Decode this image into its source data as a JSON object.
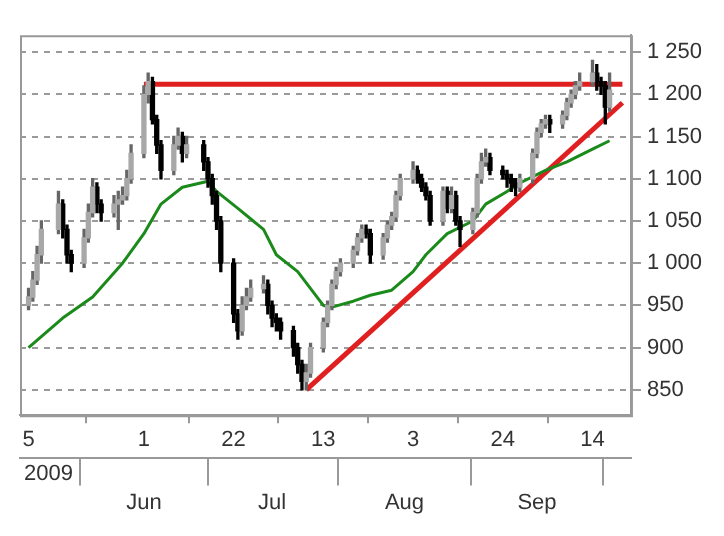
{
  "chart_data": {
    "type": "candlestick",
    "x": [
      "2009-05-05",
      "2009-05-06",
      "2009-05-07",
      "2009-05-08",
      "2009-05-12",
      "2009-05-13",
      "2009-05-14",
      "2009-05-15",
      "2009-05-18",
      "2009-05-19",
      "2009-05-20",
      "2009-05-21",
      "2009-05-22",
      "2009-05-25",
      "2009-05-26",
      "2009-05-27",
      "2009-05-28",
      "2009-05-29",
      "2009-06-01",
      "2009-06-02",
      "2009-06-03",
      "2009-06-04",
      "2009-06-05",
      "2009-06-08",
      "2009-06-09",
      "2009-06-10",
      "2009-06-11",
      "2009-06-15",
      "2009-06-16",
      "2009-06-17",
      "2009-06-18",
      "2009-06-19",
      "2009-06-22",
      "2009-06-23",
      "2009-06-24",
      "2009-06-25",
      "2009-06-26",
      "2009-06-29",
      "2009-06-30",
      "2009-07-01",
      "2009-07-02",
      "2009-07-03",
      "2009-07-06",
      "2009-07-07",
      "2009-07-08",
      "2009-07-09",
      "2009-07-10",
      "2009-07-13",
      "2009-07-14",
      "2009-07-15",
      "2009-07-16",
      "2009-07-17",
      "2009-07-20",
      "2009-07-21",
      "2009-07-22",
      "2009-07-23",
      "2009-07-24",
      "2009-07-27",
      "2009-07-28",
      "2009-07-29",
      "2009-07-30",
      "2009-07-31",
      "2009-08-03",
      "2009-08-04",
      "2009-08-05",
      "2009-08-06",
      "2009-08-07",
      "2009-08-10",
      "2009-08-11",
      "2009-08-12",
      "2009-08-13",
      "2009-08-14",
      "2009-08-17",
      "2009-08-18",
      "2009-08-19",
      "2009-08-20",
      "2009-08-21",
      "2009-08-24",
      "2009-08-25",
      "2009-08-26",
      "2009-08-27",
      "2009-08-28",
      "2009-08-31",
      "2009-09-01",
      "2009-09-02",
      "2009-09-03",
      "2009-09-04",
      "2009-09-07",
      "2009-09-08",
      "2009-09-09",
      "2009-09-10",
      "2009-09-11",
      "2009-09-14",
      "2009-09-15",
      "2009-09-16",
      "2009-09-17",
      "2009-09-18"
    ],
    "ohlc": [
      [
        950,
        970,
        945,
        960
      ],
      [
        960,
        990,
        955,
        980
      ],
      [
        980,
        1020,
        975,
        1010
      ],
      [
        1010,
        1050,
        1000,
        1040
      ],
      [
        1040,
        1085,
        1035,
        1070
      ],
      [
        1070,
        1075,
        1030,
        1040
      ],
      [
        1040,
        1045,
        1000,
        1010
      ],
      [
        1010,
        1015,
        990,
        1000
      ],
      [
        1000,
        1040,
        995,
        1030
      ],
      [
        1030,
        1070,
        1025,
        1060
      ],
      [
        1060,
        1100,
        1055,
        1090
      ],
      [
        1090,
        1095,
        1060,
        1070
      ],
      [
        1070,
        1075,
        1050,
        1060
      ],
      [
        1060,
        1080,
        1055,
        1070
      ],
      [
        1070,
        1085,
        1040,
        1075
      ],
      [
        1075,
        1090,
        1070,
        1080
      ],
      [
        1080,
        1110,
        1075,
        1100
      ],
      [
        1100,
        1140,
        1095,
        1130
      ],
      [
        1130,
        1210,
        1125,
        1200
      ],
      [
        1200,
        1225,
        1190,
        1215
      ],
      [
        1215,
        1220,
        1165,
        1170
      ],
      [
        1170,
        1175,
        1130,
        1140
      ],
      [
        1140,
        1145,
        1100,
        1110
      ],
      [
        1110,
        1150,
        1105,
        1140
      ],
      [
        1140,
        1160,
        1135,
        1150
      ],
      [
        1150,
        1155,
        1120,
        1130
      ],
      [
        1130,
        1150,
        1125,
        1140
      ],
      [
        1140,
        1145,
        1110,
        1120
      ],
      [
        1120,
        1125,
        1090,
        1100
      ],
      [
        1100,
        1105,
        1070,
        1080
      ],
      [
        1080,
        1085,
        1040,
        1050
      ],
      [
        1050,
        1055,
        990,
        1000
      ],
      [
        1000,
        1005,
        930,
        940
      ],
      [
        940,
        945,
        910,
        920
      ],
      [
        920,
        960,
        915,
        950
      ],
      [
        950,
        970,
        945,
        960
      ],
      [
        960,
        980,
        955,
        970
      ],
      [
        970,
        985,
        965,
        975
      ],
      [
        975,
        980,
        940,
        950
      ],
      [
        950,
        955,
        925,
        935
      ],
      [
        935,
        940,
        920,
        930
      ],
      [
        930,
        935,
        910,
        920
      ],
      [
        920,
        925,
        890,
        900
      ],
      [
        900,
        905,
        870,
        880
      ],
      [
        880,
        885,
        850,
        860
      ],
      [
        860,
        880,
        850,
        870
      ],
      [
        870,
        905,
        865,
        900
      ],
      [
        900,
        935,
        895,
        930
      ],
      [
        930,
        955,
        925,
        950
      ],
      [
        950,
        980,
        945,
        975
      ],
      [
        975,
        995,
        970,
        990
      ],
      [
        990,
        1005,
        985,
        1000
      ],
      [
        1000,
        1020,
        995,
        1015
      ],
      [
        1015,
        1035,
        1010,
        1030
      ],
      [
        1030,
        1045,
        1025,
        1040
      ],
      [
        1040,
        1045,
        1030,
        1035
      ],
      [
        1035,
        1040,
        1000,
        1010
      ],
      [
        1010,
        1035,
        1005,
        1030
      ],
      [
        1030,
        1050,
        1025,
        1045
      ],
      [
        1045,
        1060,
        1040,
        1055
      ],
      [
        1055,
        1085,
        1050,
        1080
      ],
      [
        1080,
        1105,
        1075,
        1100
      ],
      [
        1100,
        1120,
        1095,
        1110
      ],
      [
        1110,
        1115,
        1095,
        1100
      ],
      [
        1100,
        1105,
        1085,
        1090
      ],
      [
        1090,
        1095,
        1075,
        1080
      ],
      [
        1080,
        1085,
        1045,
        1050
      ],
      [
        1050,
        1090,
        1045,
        1085
      ],
      [
        1085,
        1090,
        1060,
        1065
      ],
      [
        1065,
        1090,
        1060,
        1080
      ],
      [
        1080,
        1085,
        1045,
        1050
      ],
      [
        1050,
        1055,
        1020,
        1040
      ],
      [
        1040,
        1065,
        1035,
        1060
      ],
      [
        1060,
        1105,
        1055,
        1100
      ],
      [
        1100,
        1130,
        1095,
        1120
      ],
      [
        1120,
        1135,
        1115,
        1125
      ],
      [
        1125,
        1130,
        1105,
        1110
      ],
      [
        1110,
        1115,
        1100,
        1105
      ],
      [
        1105,
        1110,
        1090,
        1100
      ],
      [
        1100,
        1105,
        1085,
        1095
      ],
      [
        1095,
        1100,
        1080,
        1090
      ],
      [
        1090,
        1105,
        1085,
        1100
      ],
      [
        1100,
        1135,
        1095,
        1130
      ],
      [
        1130,
        1160,
        1125,
        1155
      ],
      [
        1155,
        1170,
        1150,
        1165
      ],
      [
        1165,
        1175,
        1160,
        1170
      ],
      [
        1170,
        1175,
        1155,
        1165
      ],
      [
        1165,
        1180,
        1160,
        1175
      ],
      [
        1175,
        1195,
        1170,
        1190
      ],
      [
        1190,
        1205,
        1185,
        1200
      ],
      [
        1200,
        1215,
        1195,
        1210
      ],
      [
        1210,
        1225,
        1205,
        1215
      ],
      [
        1215,
        1240,
        1210,
        1225
      ],
      [
        1225,
        1235,
        1205,
        1215
      ],
      [
        1215,
        1220,
        1200,
        1210
      ],
      [
        1210,
        1215,
        1165,
        1185
      ],
      [
        1185,
        1225,
        1180,
        1205
      ]
    ],
    "series": [
      {
        "type": "line",
        "color": "#1a8a1a",
        "x": [
          "2009-05-05",
          "2009-05-13",
          "2009-05-20",
          "2009-05-27",
          "2009-06-01",
          "2009-06-05",
          "2009-06-10",
          "2009-06-16",
          "2009-06-18",
          "2009-06-23",
          "2009-06-29",
          "2009-07-02",
          "2009-07-07",
          "2009-07-13",
          "2009-07-15",
          "2009-07-20",
          "2009-07-24",
          "2009-07-29",
          "2009-08-03",
          "2009-08-06",
          "2009-08-11",
          "2009-08-17",
          "2009-08-20",
          "2009-08-25",
          "2009-08-28",
          "2009-09-03",
          "2009-09-08",
          "2009-09-14",
          "2009-09-18"
        ],
        "values": [
          900,
          935,
          960,
          1000,
          1035,
          1070,
          1090,
          1097,
          1085,
          1065,
          1040,
          1010,
          990,
          950,
          948,
          955,
          962,
          968,
          990,
          1010,
          1035,
          1050,
          1070,
          1085,
          1095,
          1110,
          1120,
          1135,
          1145
        ]
      },
      {
        "type": "line",
        "color": "#e02020",
        "x": [
          "2009-06-01",
          "2009-09-21"
        ],
        "values": [
          1212,
          1212
        ]
      },
      {
        "type": "line",
        "color": "#e02020",
        "x": [
          "2009-07-09",
          "2009-09-21"
        ],
        "values": [
          850,
          1190
        ]
      }
    ],
    "xlim": [
      "2009-05-03",
      "2009-09-23"
    ],
    "xticks": [
      {
        "value": "2009-05-05",
        "label": "5"
      },
      {
        "value": "2009-06-01",
        "label": "1"
      },
      {
        "value": "2009-06-22",
        "label": "22"
      },
      {
        "value": "2009-07-13",
        "label": "13"
      },
      {
        "value": "2009-08-03",
        "label": "3"
      },
      {
        "value": "2009-08-24",
        "label": "24"
      },
      {
        "value": "2009-09-14",
        "label": "14"
      }
    ],
    "x2lim": [
      "2009-05-03",
      "2009-09-23"
    ],
    "x2label": "2009",
    "x2ticks": [
      {
        "value": "2009-06-01",
        "label": "Jun"
      },
      {
        "value": "2009-07-01",
        "label": "Jul"
      },
      {
        "value": "2009-08-01",
        "label": "Aug"
      },
      {
        "value": "2009-09-01",
        "label": "Sep"
      }
    ],
    "ylim": [
      820,
      1270
    ],
    "yticks": [
      850,
      900,
      950,
      {
        "value": 1000,
        "label": "1 000"
      },
      {
        "value": 1050,
        "label": "1 050"
      },
      {
        "value": 1100,
        "label": "1 100"
      },
      {
        "value": 1150,
        "label": "1 150"
      },
      {
        "value": 1200,
        "label": "1 200"
      },
      {
        "value": 1250,
        "label": "1 250"
      }
    ],
    "grid": "y",
    "legend": false
  }
}
